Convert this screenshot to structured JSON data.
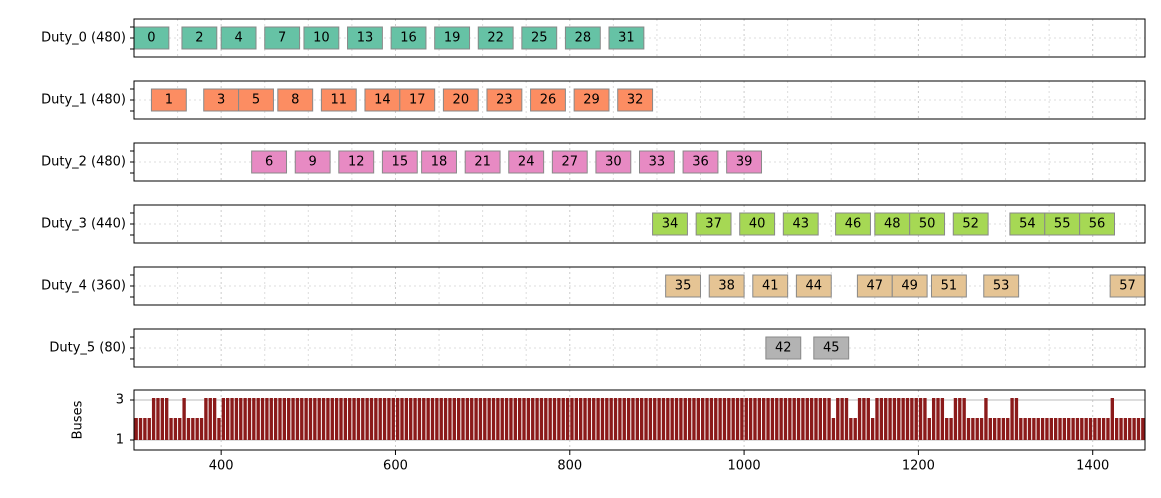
{
  "chart_data": {
    "type": "gantt",
    "xlim": [
      300,
      1460
    ],
    "x_ticks": [
      400,
      600,
      800,
      1000,
      1200,
      1400
    ],
    "grid": true,
    "rows": [
      {
        "label": "Duty_0 (480)",
        "color": "#66c2a5",
        "tasks": [
          {
            "id": "0",
            "start": 300,
            "end": 340
          },
          {
            "id": "2",
            "start": 355,
            "end": 395
          },
          {
            "id": "4",
            "start": 400,
            "end": 440
          },
          {
            "id": "7",
            "start": 450,
            "end": 490
          },
          {
            "id": "10",
            "start": 495,
            "end": 535
          },
          {
            "id": "13",
            "start": 545,
            "end": 585
          },
          {
            "id": "16",
            "start": 595,
            "end": 635
          },
          {
            "id": "19",
            "start": 645,
            "end": 685
          },
          {
            "id": "22",
            "start": 695,
            "end": 735
          },
          {
            "id": "25",
            "start": 745,
            "end": 785
          },
          {
            "id": "28",
            "start": 795,
            "end": 835
          },
          {
            "id": "31",
            "start": 845,
            "end": 885
          }
        ]
      },
      {
        "label": "Duty_1 (480)",
        "color": "#fc8d62",
        "tasks": [
          {
            "id": "1",
            "start": 320,
            "end": 360
          },
          {
            "id": "3",
            "start": 380,
            "end": 420
          },
          {
            "id": "5",
            "start": 420,
            "end": 460
          },
          {
            "id": "8",
            "start": 465,
            "end": 505
          },
          {
            "id": "11",
            "start": 515,
            "end": 555
          },
          {
            "id": "14",
            "start": 565,
            "end": 605
          },
          {
            "id": "17",
            "start": 605,
            "end": 645
          },
          {
            "id": "20",
            "start": 655,
            "end": 695
          },
          {
            "id": "23",
            "start": 705,
            "end": 745
          },
          {
            "id": "26",
            "start": 755,
            "end": 795
          },
          {
            "id": "29",
            "start": 805,
            "end": 845
          },
          {
            "id": "32",
            "start": 855,
            "end": 895
          }
        ]
      },
      {
        "label": "Duty_2 (480)",
        "color": "#e78ac3",
        "tasks": [
          {
            "id": "6",
            "start": 435,
            "end": 475
          },
          {
            "id": "9",
            "start": 485,
            "end": 525
          },
          {
            "id": "12",
            "start": 535,
            "end": 575
          },
          {
            "id": "15",
            "start": 585,
            "end": 625
          },
          {
            "id": "18",
            "start": 630,
            "end": 670
          },
          {
            "id": "21",
            "start": 680,
            "end": 720
          },
          {
            "id": "24",
            "start": 730,
            "end": 770
          },
          {
            "id": "27",
            "start": 780,
            "end": 820
          },
          {
            "id": "30",
            "start": 830,
            "end": 870
          },
          {
            "id": "33",
            "start": 880,
            "end": 920
          },
          {
            "id": "36",
            "start": 930,
            "end": 970
          },
          {
            "id": "39",
            "start": 980,
            "end": 1020
          }
        ]
      },
      {
        "label": "Duty_3 (440)",
        "color": "#a6d854",
        "tasks": [
          {
            "id": "34",
            "start": 895,
            "end": 935
          },
          {
            "id": "37",
            "start": 945,
            "end": 985
          },
          {
            "id": "40",
            "start": 995,
            "end": 1035
          },
          {
            "id": "43",
            "start": 1045,
            "end": 1085
          },
          {
            "id": "46",
            "start": 1105,
            "end": 1145
          },
          {
            "id": "48",
            "start": 1150,
            "end": 1190
          },
          {
            "id": "50",
            "start": 1190,
            "end": 1230
          },
          {
            "id": "52",
            "start": 1240,
            "end": 1280
          },
          {
            "id": "54",
            "start": 1305,
            "end": 1345
          },
          {
            "id": "55",
            "start": 1345,
            "end": 1385
          },
          {
            "id": "56",
            "start": 1385,
            "end": 1425
          }
        ]
      },
      {
        "label": "Duty_4 (360)",
        "color": "#e5c494",
        "tasks": [
          {
            "id": "35",
            "start": 910,
            "end": 950
          },
          {
            "id": "38",
            "start": 960,
            "end": 1000
          },
          {
            "id": "41",
            "start": 1010,
            "end": 1050
          },
          {
            "id": "44",
            "start": 1060,
            "end": 1100
          },
          {
            "id": "47",
            "start": 1130,
            "end": 1170
          },
          {
            "id": "49",
            "start": 1170,
            "end": 1210
          },
          {
            "id": "51",
            "start": 1215,
            "end": 1255
          },
          {
            "id": "53",
            "start": 1275,
            "end": 1315
          },
          {
            "id": "57",
            "start": 1420,
            "end": 1460
          }
        ]
      },
      {
        "label": "Duty_5 (80)",
        "color": "#b3b3b3",
        "tasks": [
          {
            "id": "42",
            "start": 1025,
            "end": 1065
          },
          {
            "id": "45",
            "start": 1080,
            "end": 1120
          }
        ]
      }
    ],
    "buses": {
      "ylabel": "Buses",
      "y_ticks": [
        1,
        3
      ],
      "ylim": [
        0.5,
        3.5
      ],
      "color": "#8b1a1a"
    }
  }
}
